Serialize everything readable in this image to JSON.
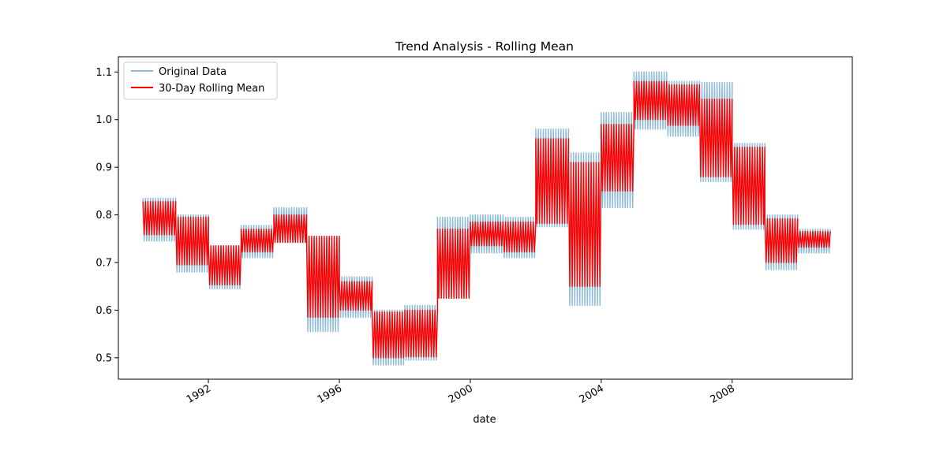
{
  "chart_data": {
    "type": "line",
    "title": "Trend Analysis - Rolling Mean",
    "xlabel": "date",
    "ylabel": "",
    "xlim": [
      1989.25,
      2011.67
    ],
    "ylim": [
      0.455,
      1.132
    ],
    "x_ticks": [
      {
        "value": 1992,
        "label": "1992"
      },
      {
        "value": 1996,
        "label": "1996"
      },
      {
        "value": 2000,
        "label": "2000"
      },
      {
        "value": 2004,
        "label": "2004"
      },
      {
        "value": 2008,
        "label": "2008"
      }
    ],
    "y_ticks": [
      {
        "value": 0.5,
        "label": "0.5"
      },
      {
        "value": 0.6,
        "label": "0.6"
      },
      {
        "value": 0.7,
        "label": "0.7"
      },
      {
        "value": 0.8,
        "label": "0.8"
      },
      {
        "value": 0.9,
        "label": "0.9"
      },
      {
        "value": 1.0,
        "label": "1.0"
      },
      {
        "value": 1.1,
        "label": "1.1"
      }
    ],
    "legend": {
      "placement": "upper-left"
    },
    "grid": false,
    "series": [
      {
        "name": "Original Data",
        "color": "#8fbbd9",
        "segments": [
          {
            "start": 1990.0,
            "end": 1991.0,
            "low": 0.745,
            "high": 0.835
          },
          {
            "start": 1991.0,
            "end": 1992.0,
            "low": 0.68,
            "high": 0.8
          },
          {
            "start": 1992.0,
            "end": 1993.0,
            "low": 0.645,
            "high": 0.735
          },
          {
            "start": 1993.0,
            "end": 1994.0,
            "low": 0.71,
            "high": 0.778
          },
          {
            "start": 1994.0,
            "end": 1995.0,
            "low": 0.742,
            "high": 0.815
          },
          {
            "start": 1995.0,
            "end": 1996.0,
            "low": 0.555,
            "high": 0.755
          },
          {
            "start": 1996.0,
            "end": 1997.0,
            "low": 0.585,
            "high": 0.67
          },
          {
            "start": 1997.0,
            "end": 1998.0,
            "low": 0.485,
            "high": 0.6
          },
          {
            "start": 1998.0,
            "end": 1999.0,
            "low": 0.495,
            "high": 0.61
          },
          {
            "start": 1999.0,
            "end": 2000.0,
            "low": 0.625,
            "high": 0.795
          },
          {
            "start": 2000.0,
            "end": 2001.0,
            "low": 0.72,
            "high": 0.8
          },
          {
            "start": 2001.0,
            "end": 2002.0,
            "low": 0.71,
            "high": 0.795
          },
          {
            "start": 2002.0,
            "end": 2003.0,
            "low": 0.775,
            "high": 0.98
          },
          {
            "start": 2003.0,
            "end": 2004.0,
            "low": 0.61,
            "high": 0.93
          },
          {
            "start": 2004.0,
            "end": 2005.0,
            "low": 0.815,
            "high": 1.015
          },
          {
            "start": 2005.0,
            "end": 2006.0,
            "low": 0.98,
            "high": 1.1
          },
          {
            "start": 2006.0,
            "end": 2007.0,
            "low": 0.965,
            "high": 1.08
          },
          {
            "start": 2007.0,
            "end": 2008.0,
            "low": 0.87,
            "high": 1.078
          },
          {
            "start": 2008.0,
            "end": 2009.0,
            "low": 0.77,
            "high": 0.95
          },
          {
            "start": 2009.0,
            "end": 2010.0,
            "low": 0.685,
            "high": 0.8
          },
          {
            "start": 2010.0,
            "end": 2011.0,
            "low": 0.72,
            "high": 0.77
          }
        ]
      },
      {
        "name": "30-Day Rolling Mean",
        "color": "#ff0000",
        "segments": [
          {
            "start": 1990.0,
            "end": 1991.0,
            "low": 0.758,
            "high": 0.828
          },
          {
            "start": 1991.0,
            "end": 1992.0,
            "low": 0.695,
            "high": 0.795
          },
          {
            "start": 1992.0,
            "end": 1993.0,
            "low": 0.653,
            "high": 0.735
          },
          {
            "start": 1993.0,
            "end": 1994.0,
            "low": 0.722,
            "high": 0.77
          },
          {
            "start": 1994.0,
            "end": 1995.0,
            "low": 0.742,
            "high": 0.8
          },
          {
            "start": 1995.0,
            "end": 1996.0,
            "low": 0.585,
            "high": 0.755
          },
          {
            "start": 1996.0,
            "end": 1997.0,
            "low": 0.6,
            "high": 0.66
          },
          {
            "start": 1997.0,
            "end": 1998.0,
            "low": 0.5,
            "high": 0.596
          },
          {
            "start": 1998.0,
            "end": 1999.0,
            "low": 0.502,
            "high": 0.6
          },
          {
            "start": 1999.0,
            "end": 2000.0,
            "low": 0.625,
            "high": 0.77
          },
          {
            "start": 2000.0,
            "end": 2001.0,
            "low": 0.735,
            "high": 0.785
          },
          {
            "start": 2001.0,
            "end": 2002.0,
            "low": 0.722,
            "high": 0.785
          },
          {
            "start": 2002.0,
            "end": 2003.0,
            "low": 0.782,
            "high": 0.96
          },
          {
            "start": 2003.0,
            "end": 2004.0,
            "low": 0.65,
            "high": 0.91
          },
          {
            "start": 2004.0,
            "end": 2005.0,
            "low": 0.85,
            "high": 0.99
          },
          {
            "start": 2005.0,
            "end": 2006.0,
            "low": 1.0,
            "high": 1.08
          },
          {
            "start": 2006.0,
            "end": 2007.0,
            "low": 0.988,
            "high": 1.073
          },
          {
            "start": 2007.0,
            "end": 2008.0,
            "low": 0.88,
            "high": 1.043
          },
          {
            "start": 2008.0,
            "end": 2009.0,
            "low": 0.78,
            "high": 0.942
          },
          {
            "start": 2009.0,
            "end": 2010.0,
            "low": 0.7,
            "high": 0.792
          },
          {
            "start": 2010.0,
            "end": 2011.0,
            "low": 0.732,
            "high": 0.765
          }
        ]
      }
    ]
  }
}
